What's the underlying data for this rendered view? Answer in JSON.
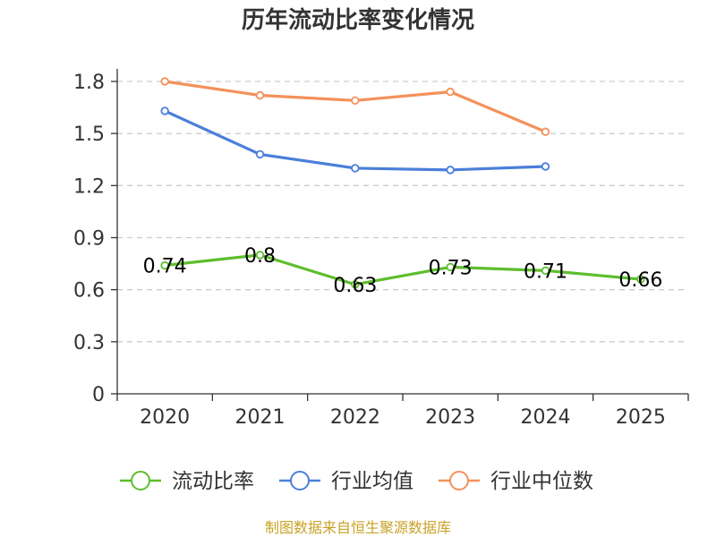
{
  "chart_data": {
    "type": "line",
    "title": "历年流动比率变化情况",
    "categories": [
      "2020",
      "2021",
      "2022",
      "2023",
      "2024",
      "2025"
    ],
    "y_ticks": [
      "0",
      "0.3",
      "0.6",
      "0.9",
      "1.2",
      "1.5",
      "1.8"
    ],
    "ylim": [
      0,
      1.8
    ],
    "grid": true,
    "legend_position": "bottom",
    "series": [
      {
        "name": "流动比率",
        "color": "#5dbe2d",
        "show_labels": true,
        "values": [
          0.74,
          0.8,
          0.63,
          0.73,
          0.71,
          0.66
        ],
        "labels": [
          "0.74",
          "0.8",
          "0.63",
          "0.73",
          "0.71",
          "0.66"
        ]
      },
      {
        "name": "行业均值",
        "color": "#4a7fd9",
        "show_labels": false,
        "values": [
          1.63,
          1.38,
          1.3,
          1.29,
          1.31,
          null
        ]
      },
      {
        "name": "行业中位数",
        "color": "#f4915b",
        "show_labels": false,
        "values": [
          1.8,
          1.72,
          1.69,
          1.74,
          1.51,
          null
        ]
      }
    ],
    "source": "制图数据来自恒生聚源数据库"
  }
}
